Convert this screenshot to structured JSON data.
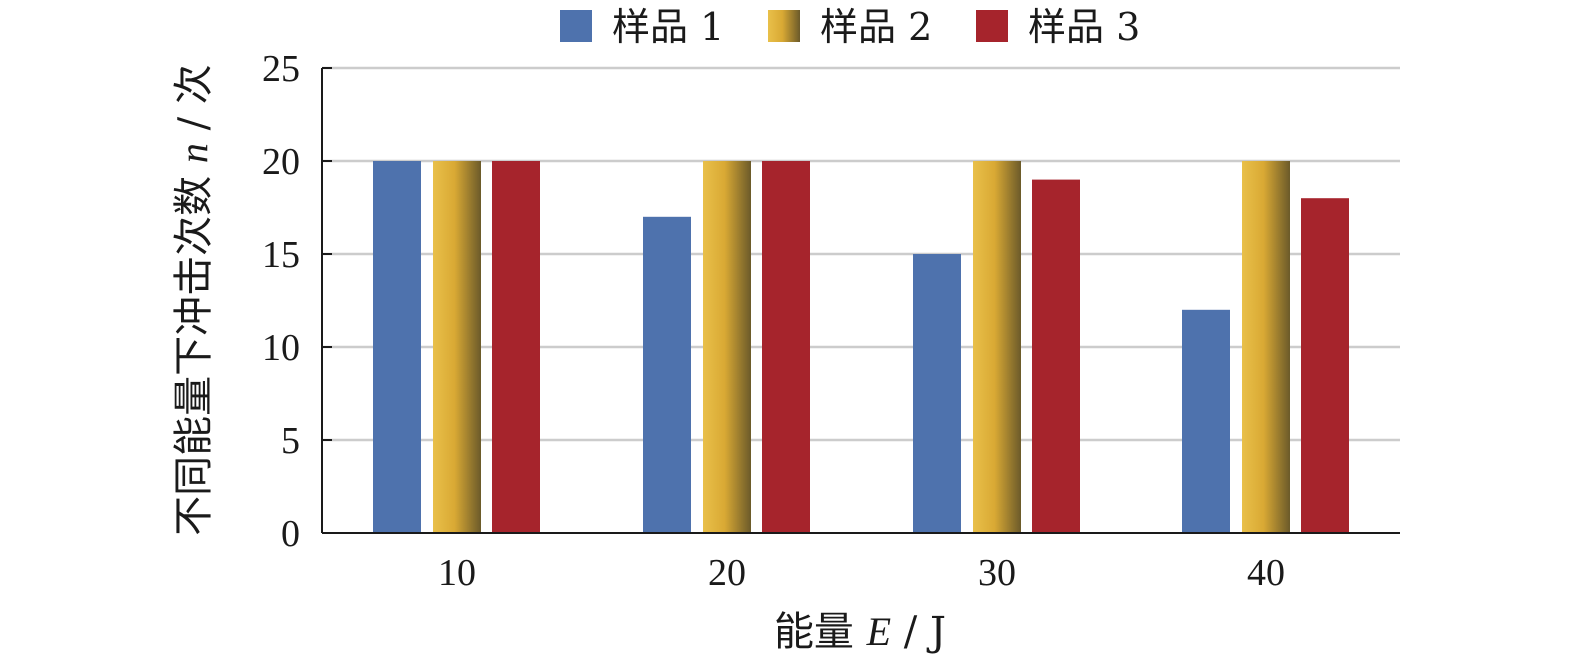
{
  "chart_data": {
    "type": "bar",
    "categories": [
      "10",
      "20",
      "30",
      "40"
    ],
    "series": [
      {
        "name": "样品 1",
        "values": [
          20,
          17,
          15,
          12
        ],
        "color": "#4e72ad"
      },
      {
        "name": "样品 2",
        "values": [
          20,
          20,
          20,
          20
        ],
        "color": "#d8ad35"
      },
      {
        "name": "样品 3",
        "values": [
          20,
          20,
          19,
          18
        ],
        "color": "#a6242c"
      }
    ],
    "y_ticks": [
      "0",
      "5",
      "10",
      "15",
      "20",
      "25"
    ],
    "ylim": [
      0,
      25
    ],
    "xlabel_prefix": "能量 ",
    "xlabel_var": "E",
    "xlabel_unit": " / J",
    "ylabel_prefix": "不同能量下冲击次数 ",
    "ylabel_var": "n",
    "ylabel_unit": " / 次",
    "grid": true,
    "grid_color": "#cccccc",
    "legend_position": "top"
  }
}
